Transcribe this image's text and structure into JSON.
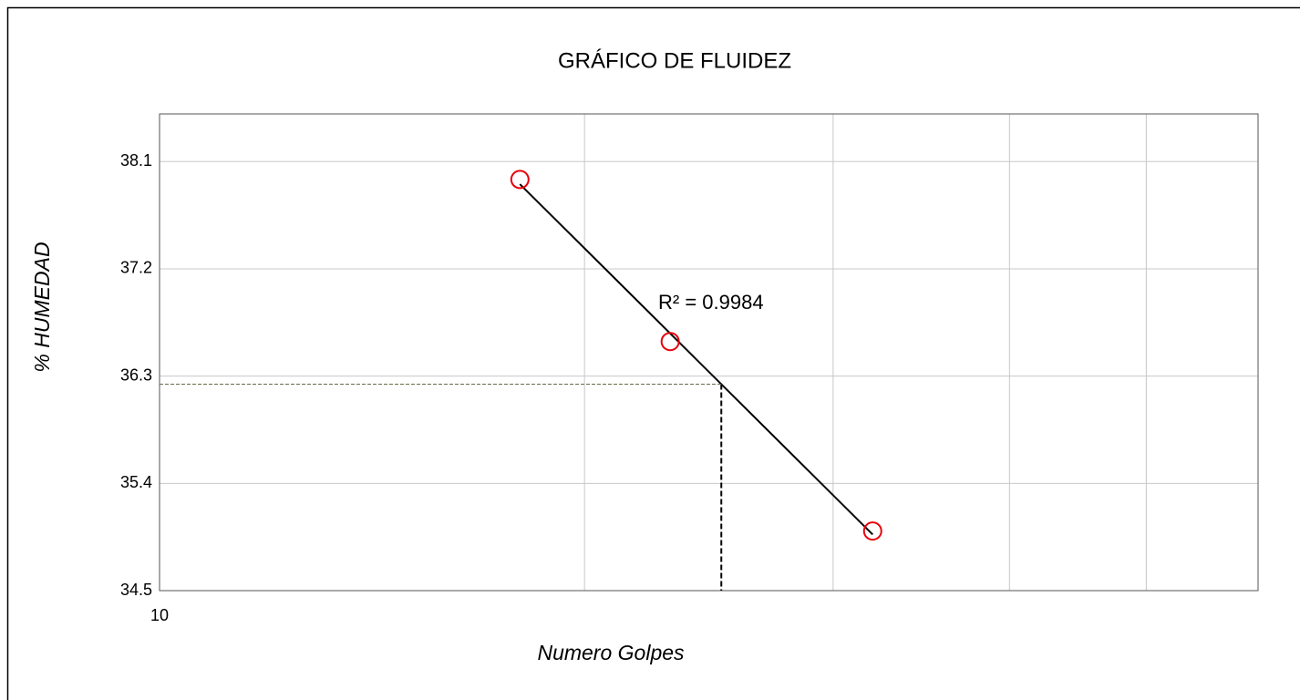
{
  "chart_data": {
    "type": "scatter",
    "title": "GRÁFICO DE FLUIDEZ",
    "xlabel": "Numero  Golpes",
    "ylabel": "% HUMEDAD",
    "x": [
      18,
      23,
      32
    ],
    "values": [
      37.95,
      36.59,
      35.0
    ],
    "color": "#e8000b",
    "x_log": true,
    "xlim": [
      10,
      60
    ],
    "xticks": [
      10
    ],
    "xminor": [
      20,
      30,
      40,
      50
    ],
    "ylim": [
      34.5,
      38.5
    ],
    "yticks": [
      34.5,
      35.4,
      36.3,
      37.2,
      38.1
    ],
    "grid": true,
    "trendline": "log",
    "annotation": "R² = 0.9984",
    "reference_x": 25
  }
}
